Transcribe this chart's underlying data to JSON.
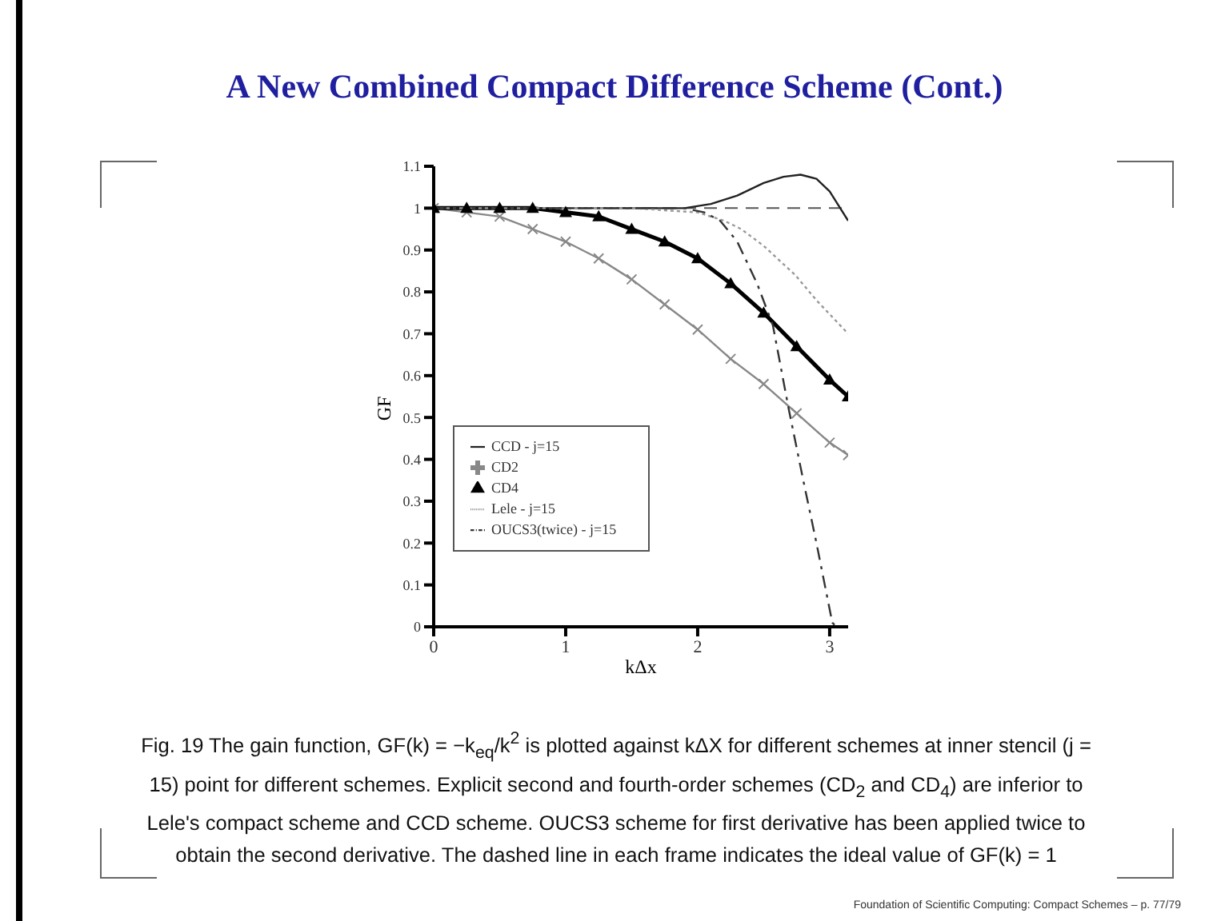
{
  "chart_data": {
    "type": "line",
    "title": "A New Combined Compact Difference Scheme (Cont.)",
    "xlabel": "kΔx",
    "ylabel": "GF",
    "xlim": [
      0,
      3.14
    ],
    "xticks": [
      0,
      1,
      2,
      3
    ],
    "ylim": [
      0,
      1.1
    ],
    "yticks": [
      0,
      0.1,
      0.2,
      0.3,
      0.4,
      0.5,
      0.6,
      0.7,
      0.8,
      0.9,
      1,
      1.1
    ],
    "grid": false,
    "legend": "left",
    "ref_lines": [
      {
        "axis": "y",
        "value": 1,
        "line_style": "dashed",
        "color": "#555555"
      }
    ],
    "series": [
      {
        "name": "CD2",
        "color": "#888888",
        "marker": "cross",
        "line_style": "solid",
        "x": [
          0,
          0.25,
          0.5,
          0.75,
          1,
          1.25,
          1.5,
          1.75,
          2,
          2.25,
          2.5,
          2.75,
          3,
          3.14
        ],
        "values": [
          1,
          0.99,
          0.98,
          0.95,
          0.92,
          0.88,
          0.83,
          0.77,
          0.71,
          0.64,
          0.58,
          0.51,
          0.44,
          0.41
        ]
      },
      {
        "name": "CD4",
        "color": "#000000",
        "marker": "triangle",
        "line_style": "solid",
        "x": [
          0,
          0.25,
          0.5,
          0.75,
          1,
          1.25,
          1.5,
          1.75,
          2,
          2.25,
          2.5,
          2.75,
          3,
          3.14
        ],
        "values": [
          1,
          1,
          1,
          1,
          0.99,
          0.98,
          0.95,
          0.92,
          0.88,
          0.82,
          0.75,
          0.67,
          0.59,
          0.55
        ]
      },
      {
        "name": "CCD - j=15",
        "color": "#222222",
        "marker": "none",
        "line_style": "solid",
        "x": [
          0,
          1,
          1.5,
          1.9,
          2.1,
          2.3,
          2.5,
          2.65,
          2.78,
          2.9,
          3,
          3.08,
          3.14
        ],
        "values": [
          1,
          1,
          1,
          1,
          1.01,
          1.03,
          1.06,
          1.075,
          1.08,
          1.07,
          1.04,
          1,
          0.97
        ]
      },
      {
        "name": "Lele - j=15",
        "color": "#999999",
        "marker": "none",
        "line_style": "dotted",
        "x": [
          0,
          1,
          1.5,
          2,
          2.2,
          2.33,
          2.5,
          2.74,
          2.9,
          3.05,
          3.14
        ],
        "values": [
          1,
          1,
          1,
          0.99,
          0.97,
          0.95,
          0.91,
          0.84,
          0.78,
          0.73,
          0.7
        ]
      },
      {
        "name": "OUCS3(twice) - j=15",
        "color": "#333333",
        "marker": "none",
        "line_style": "dashed",
        "x": [
          0,
          1,
          1.5,
          1.9,
          2.05,
          2.17,
          2.3,
          2.45,
          2.57,
          2.69,
          2.8,
          2.9,
          3.02,
          3.05
        ],
        "values": [
          1,
          1,
          1,
          1,
          0.99,
          0.97,
          0.92,
          0.82,
          0.72,
          0.52,
          0.35,
          0.2,
          0.01,
          0
        ]
      }
    ],
    "annotations": [
      "Fig. 19 The gain function, GF(k) = −k$_{eq}$/k$^{2}$ is plotted against kΔX for different schemes at inner stencil (j = 15) point for different schemes. Explicit second and fourth-order schemes (CD$_{2}$ and CD$_{4}$) are inferior to Lele's compact scheme and CCD scheme. OUCS3 scheme for first derivative has been applied twice to obtain the second derivative. The dashed line in each frame indicates the ideal value of GF(k) = 1",
      "Foundation of Scientific Computing: Compact Schemes – p. 77/79"
    ]
  }
}
